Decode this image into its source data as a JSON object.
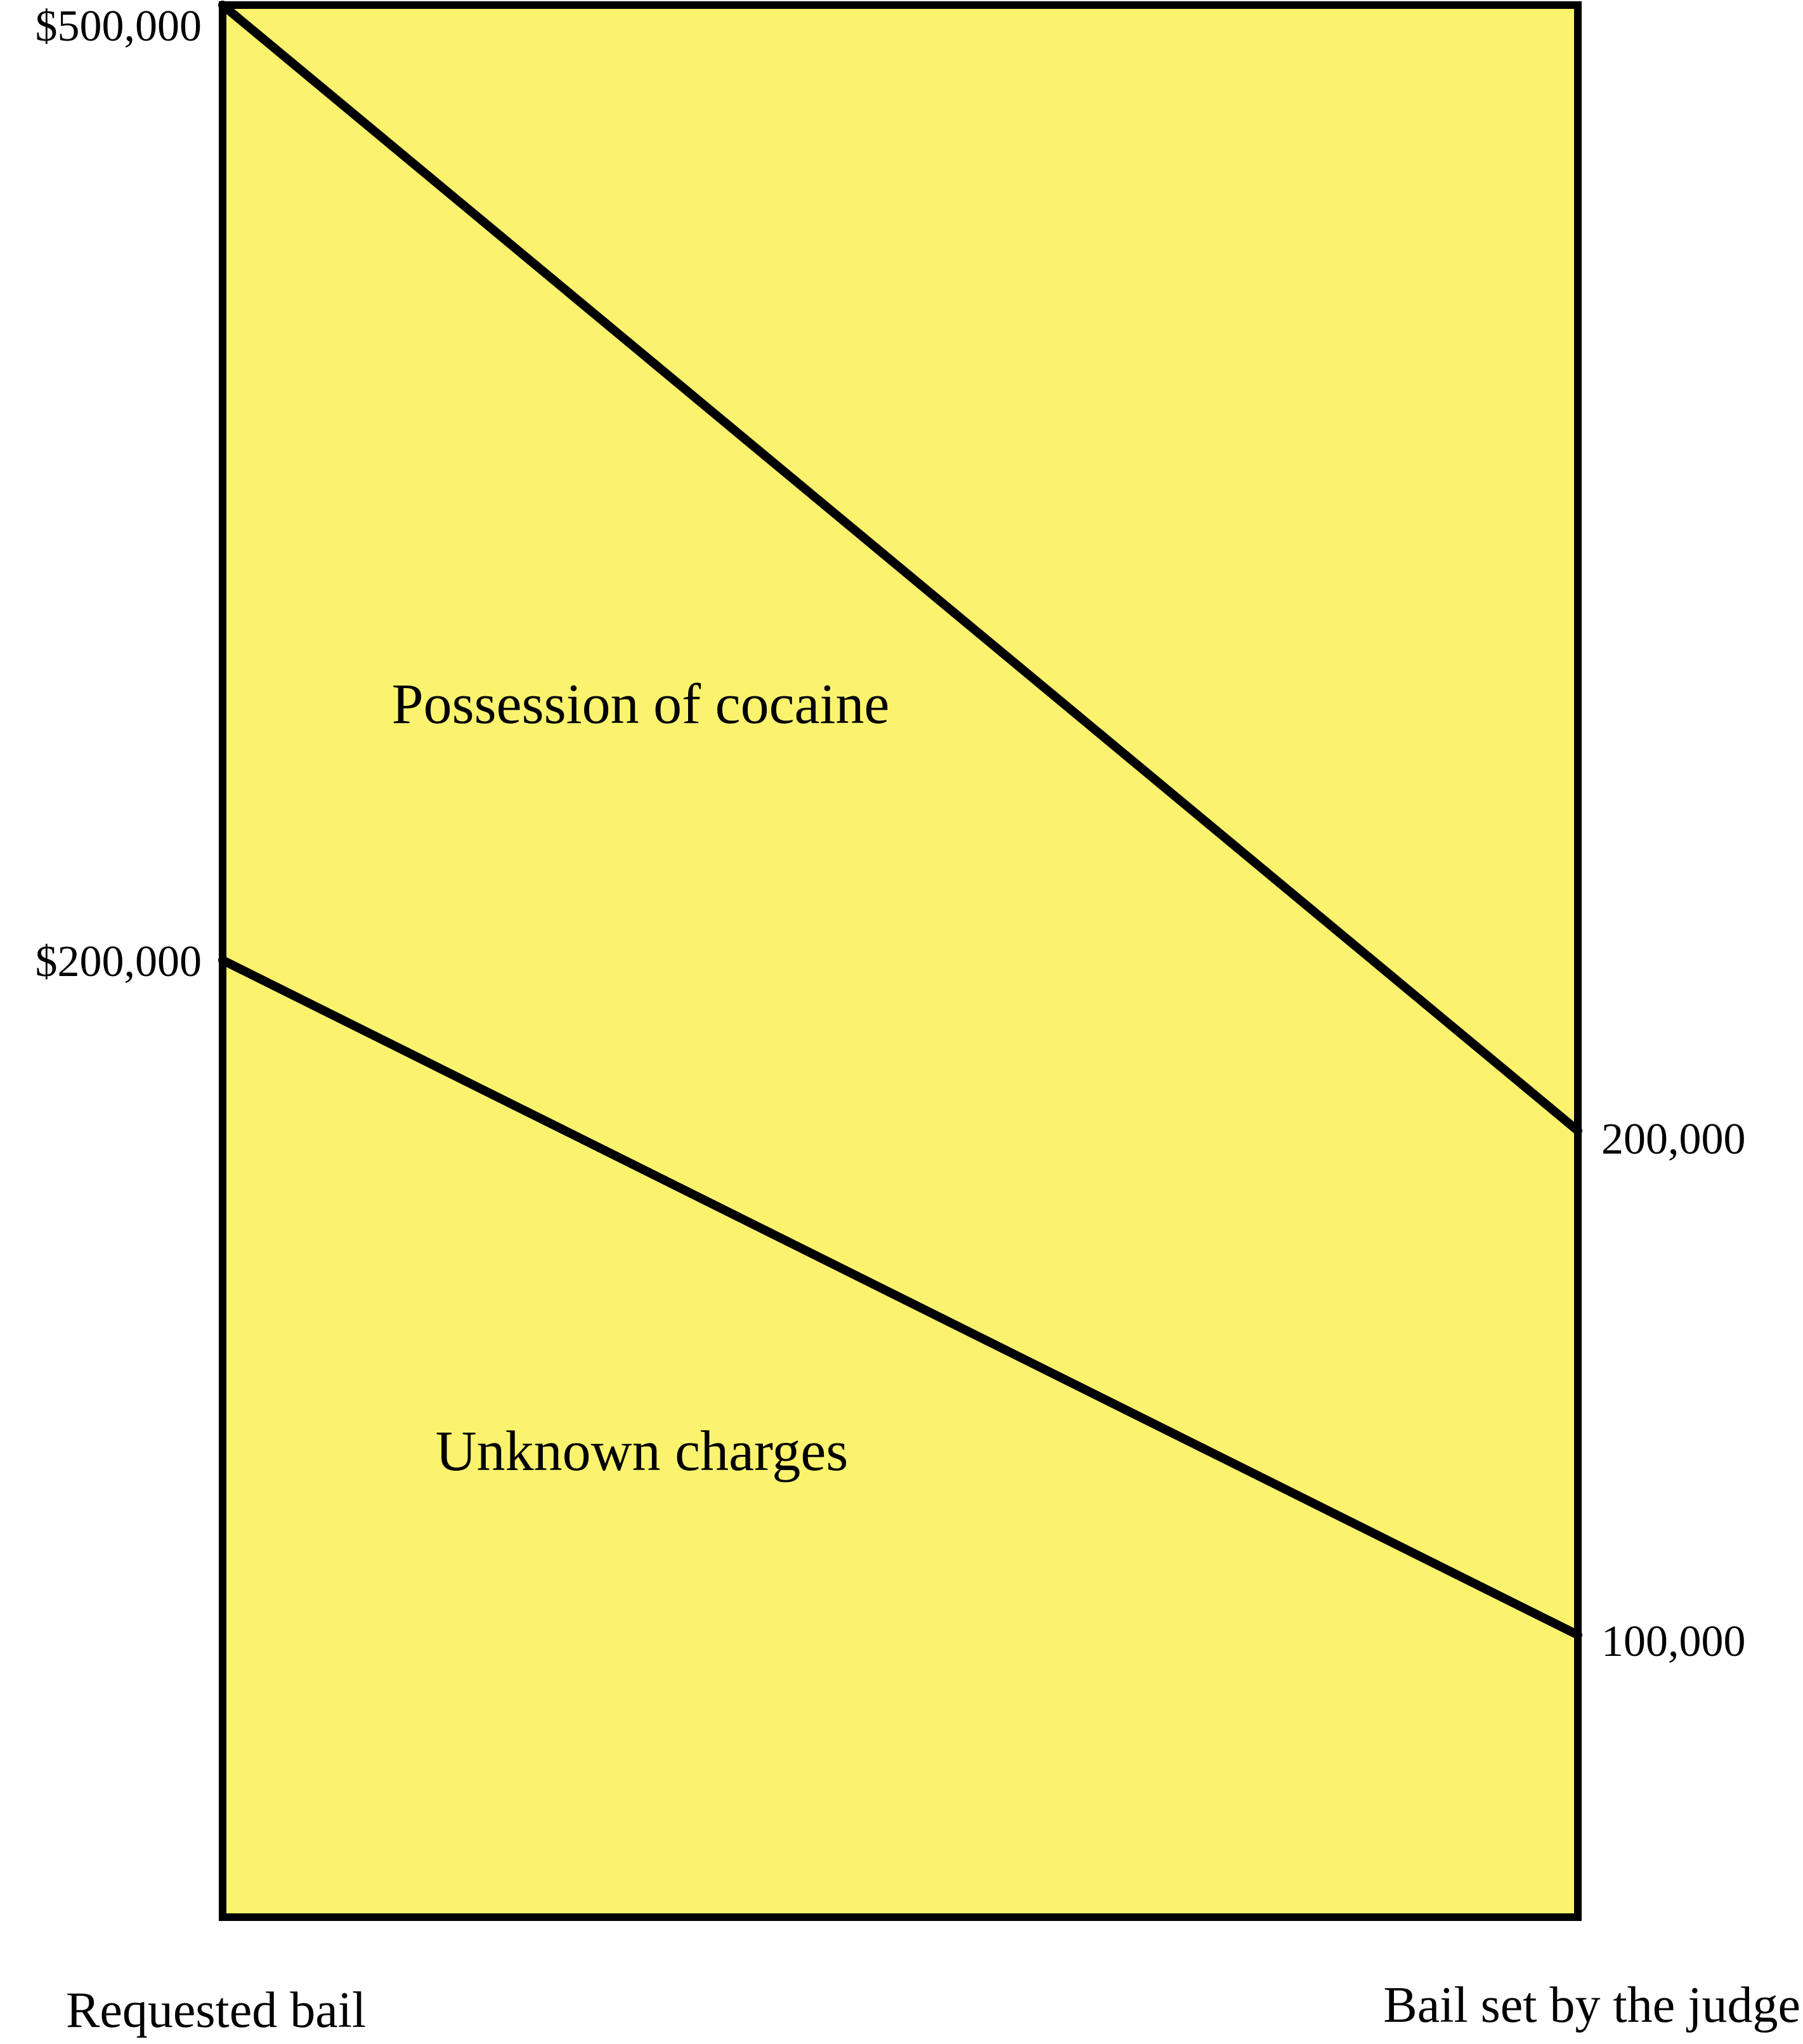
{
  "chart_data": {
    "type": "line",
    "categories": [
      "Requested bail",
      "Bail set by the judge"
    ],
    "series": [
      {
        "name": "Possession of cocaine",
        "values": [
          500000,
          200000
        ]
      },
      {
        "name": "Unknown charges",
        "values": [
          200000,
          100000
        ]
      }
    ],
    "left_tick_labels": [
      "$500,000",
      "$200,000"
    ],
    "right_tick_labels": [
      "200,000",
      "100,000"
    ],
    "ylim": [
      0,
      500000
    ],
    "background_color": "#fbf36e",
    "line_color": "#000000",
    "grid": false,
    "legend": "none"
  }
}
